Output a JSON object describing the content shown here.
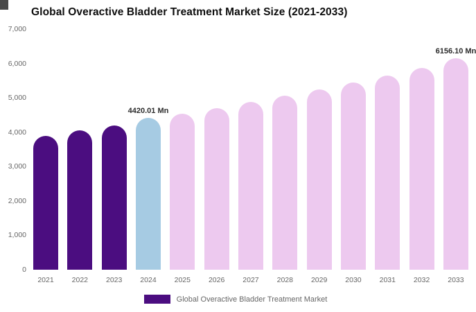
{
  "page": {
    "background": "#ffffff"
  },
  "chart_data": {
    "type": "bar",
    "title": "Global Overactive Bladder Treatment Market Size (2021-2033)",
    "legend": "Global Overactive Bladder Treatment Market",
    "unit": "Mn",
    "categories": [
      "2021",
      "2022",
      "2023",
      "2024",
      "2025",
      "2026",
      "2027",
      "2028",
      "2029",
      "2030",
      "2031",
      "2032",
      "2033"
    ],
    "values": [
      3900,
      4050,
      4200,
      4420.01,
      4530,
      4700,
      4890,
      5060,
      5240,
      5440,
      5650,
      5880,
      6156.1
    ],
    "ylim": [
      0,
      7000
    ],
    "yticks": [
      0,
      1000,
      2000,
      3000,
      4000,
      5000,
      6000,
      7000
    ],
    "ytick_labels": [
      "0",
      "1,000",
      "2,000",
      "3,000",
      "4,000",
      "5,000",
      "6,000",
      "7,000"
    ],
    "grid": false,
    "legend_position": "bottom",
    "colors": {
      "historical": "#4B0D80",
      "base_year": "#A6CBE3",
      "forecast": "#EDC9EF"
    },
    "bar_colors": [
      "#4B0D80",
      "#4B0D80",
      "#4B0D80",
      "#A6CBE3",
      "#EDC9EF",
      "#EDC9EF",
      "#EDC9EF",
      "#EDC9EF",
      "#EDC9EF",
      "#EDC9EF",
      "#EDC9EF",
      "#EDC9EF",
      "#EDC9EF"
    ],
    "annotations": [
      {
        "index": 3,
        "text": "4420.01 Mn"
      },
      {
        "index": 12,
        "text": "6156.10 Mn"
      }
    ]
  }
}
